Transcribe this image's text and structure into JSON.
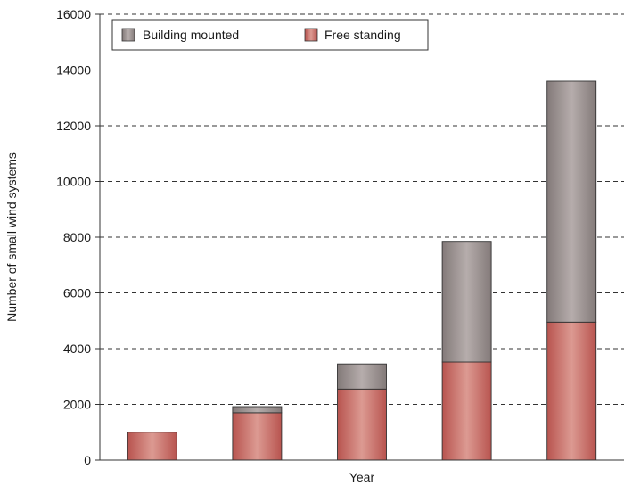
{
  "chart_data": {
    "type": "bar",
    "stacked": true,
    "categories": [
      "",
      "",
      "",
      "",
      ""
    ],
    "series": [
      {
        "name": "Free standing",
        "values": [
          1000,
          1700,
          2550,
          3520,
          4950
        ],
        "color": "#c4625f"
      },
      {
        "name": "Building mounted",
        "values": [
          0,
          220,
          900,
          4330,
          8650
        ],
        "color": "#8f8786"
      }
    ],
    "xlabel": "Year",
    "ylabel": "Number of small wind systems",
    "ylim": [
      0,
      16000
    ],
    "yticks": [
      0,
      2000,
      4000,
      6000,
      8000,
      10000,
      12000,
      14000,
      16000
    ],
    "grid": true,
    "legend": {
      "position": "top-left",
      "order": [
        "Building mounted",
        "Free standing"
      ]
    }
  }
}
